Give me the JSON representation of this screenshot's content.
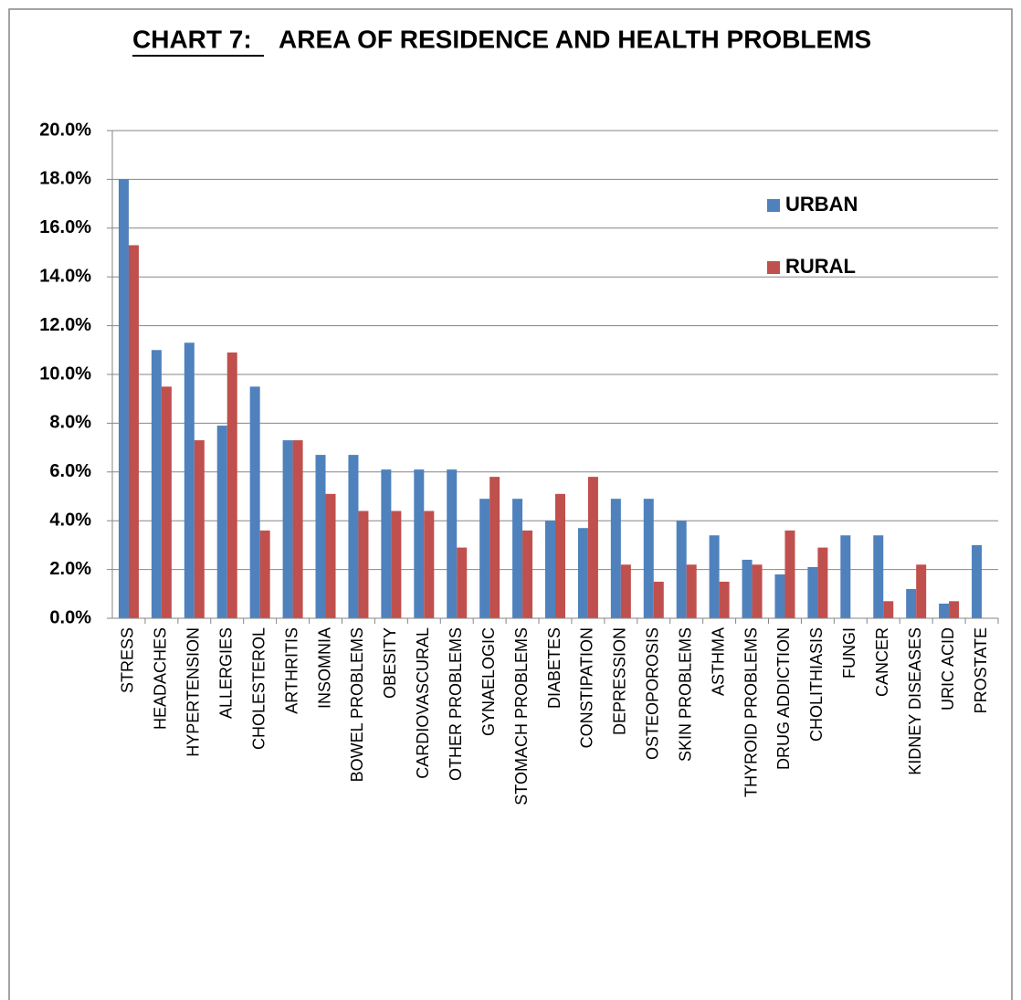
{
  "chart_data": {
    "type": "bar",
    "title_label": "CHART 7:",
    "title": "AREA OF RESIDENCE AND HEALTH PROBLEMS",
    "categories": [
      "STRESS",
      "HEADACHES",
      "HYPERTENSION",
      "ALLERGIES",
      "CHOLESTEROL",
      "ARTHRITIS",
      "INSOMNIA",
      "BOWEL PROBLEMS",
      "OBESITY",
      "CARDIOVASCURAL",
      "OTHER PROBLEMS",
      "GYNAELOGIC",
      "STOMACH PROBLEMS",
      "DIABETES",
      "CONSTIPATION",
      "DEPRESSION",
      "OSTEOPOROSIS",
      "SKIN PROBLEMS",
      "ASTHMA",
      "THYROID PROBLEMS",
      "DRUG ADDICTION",
      "CHOLITHIASIS",
      "FUNGI",
      "CANCER",
      "KIDNEY DISEASES",
      "URIC ACID",
      "PROSTATE"
    ],
    "series": [
      {
        "name": "URBAN",
        "color": "#4f81bd",
        "values": [
          18.0,
          11.0,
          11.3,
          7.9,
          9.5,
          7.3,
          6.7,
          6.7,
          6.1,
          6.1,
          6.1,
          4.9,
          4.9,
          4.0,
          3.7,
          4.9,
          4.9,
          4.0,
          3.4,
          2.4,
          1.8,
          2.1,
          3.4,
          3.4,
          1.2,
          0.6,
          3.0
        ]
      },
      {
        "name": "RURAL",
        "color": "#c0504d",
        "values": [
          15.3,
          9.5,
          7.3,
          10.9,
          3.6,
          7.3,
          5.1,
          4.4,
          4.4,
          4.4,
          2.9,
          5.8,
          3.6,
          5.1,
          5.8,
          2.2,
          1.5,
          2.2,
          1.5,
          2.2,
          3.6,
          2.9,
          0,
          0.7,
          2.2,
          0.7,
          0
        ]
      }
    ],
    "ylim": [
      0,
      20
    ],
    "yticks": [
      {
        "value": 0,
        "label": "0.0%"
      },
      {
        "value": 2,
        "label": "2.0%"
      },
      {
        "value": 4,
        "label": "4.0%"
      },
      {
        "value": 6,
        "label": "6.0%"
      },
      {
        "value": 8,
        "label": "8.0%"
      },
      {
        "value": 10,
        "label": "10.0%"
      },
      {
        "value": 12,
        "label": "12.0%"
      },
      {
        "value": 14,
        "label": "14.0%"
      },
      {
        "value": 16,
        "label": "16.0%"
      },
      {
        "value": 18,
        "label": "18.0%"
      },
      {
        "value": 20,
        "label": "20.0%"
      }
    ],
    "grid": true,
    "legend": "upper right"
  }
}
